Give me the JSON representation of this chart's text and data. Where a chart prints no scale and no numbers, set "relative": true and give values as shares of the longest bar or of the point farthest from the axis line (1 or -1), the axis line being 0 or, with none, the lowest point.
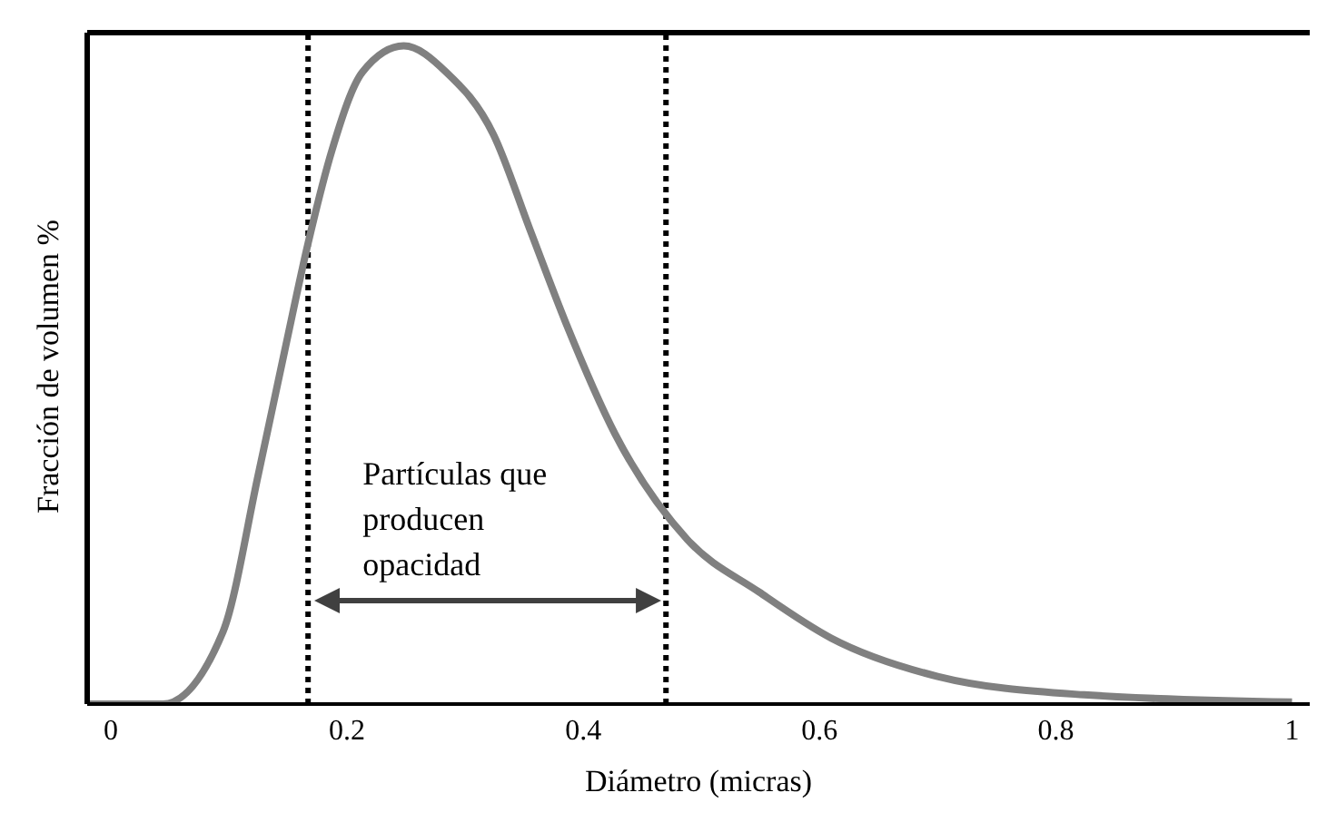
{
  "chart_data": {
    "type": "line",
    "relative": true,
    "xlabel": "Diámetro (micras)",
    "ylabel": "Fracción de volumen %",
    "x": [
      -0.02,
      0.044,
      0.095,
      0.125,
      0.147,
      0.167,
      0.187,
      0.213,
      0.248,
      0.284,
      0.324,
      0.355,
      0.385,
      0.427,
      0.488,
      0.549,
      0.61,
      0.7,
      0.824,
      1.0
    ],
    "series": [
      {
        "color": "#808080",
        "values": [
          0,
          0,
          0.11,
          0.35,
          0.535,
          0.7,
          0.84,
          0.96,
          1.0,
          0.96,
          0.865,
          0.72,
          0.58,
          0.41,
          0.25,
          0.17,
          0.1,
          0.042,
          0.014,
          0.003
        ]
      }
    ],
    "xlim": [
      -0.02,
      1.015
    ],
    "xticks": [
      0,
      0.2,
      0.4,
      0.6,
      0.8,
      1
    ],
    "ref_lines": [
      {
        "axis": "x",
        "value": 0.167,
        "color": "#000000",
        "line_style": "dotted"
      },
      {
        "axis": "x",
        "value": 0.47,
        "color": "#000000",
        "line_style": "dotted"
      }
    ],
    "annotations": [
      "Partículas que producen opacidad"
    ],
    "grid": false,
    "marker": "none",
    "line_style": "solid"
  }
}
